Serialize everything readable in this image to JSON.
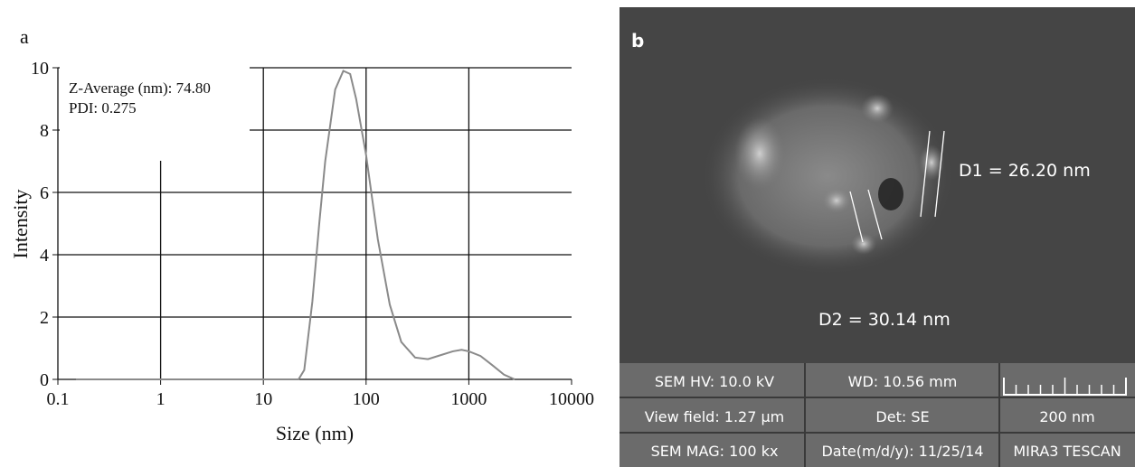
{
  "chart_data": {
    "type": "line",
    "panel_label": "a",
    "x_label": "Size (nm)",
    "y_label": "Intensity",
    "annotations": [
      "Z-Average (nm): 74.80",
      "PDI: 0.275"
    ],
    "log_x": true,
    "grid": true,
    "color": "#8a8a8a",
    "x": [
      0.15,
      20,
      22,
      25,
      30,
      35,
      40,
      50,
      60,
      70,
      80,
      100,
      130,
      170,
      220,
      300,
      400,
      500,
      700,
      850,
      1000,
      1300,
      1700,
      2200,
      2800
    ],
    "values": [
      0,
      0,
      0,
      0.3,
      2.5,
      5,
      7,
      9.3,
      9.9,
      9.8,
      9,
      7.2,
      4.5,
      2.4,
      1.2,
      0.7,
      0.65,
      0.75,
      0.9,
      0.95,
      0.9,
      0.75,
      0.45,
      0.15,
      0
    ],
    "xlim": [
      0.1,
      10000
    ],
    "xticks": [
      0.1,
      1,
      10,
      100,
      1000,
      10000
    ],
    "ylim": [
      0,
      10
    ],
    "yticks": [
      0,
      2,
      4,
      6,
      8,
      10
    ]
  },
  "sem_panel": {
    "panel_label": "b",
    "measurements": [
      "D1 = 26.20 nm",
      "D2 = 30.14 nm"
    ],
    "info": [
      [
        "SEM HV: 10.0 kV",
        "WD: 10.56 mm",
        ""
      ],
      [
        "View field: 1.27 µm",
        "Det: SE",
        "200 nm"
      ],
      [
        "SEM MAG: 100 kx",
        "Date(m/d/y): 11/25/14",
        "MIRA3 TESCAN"
      ]
    ]
  }
}
